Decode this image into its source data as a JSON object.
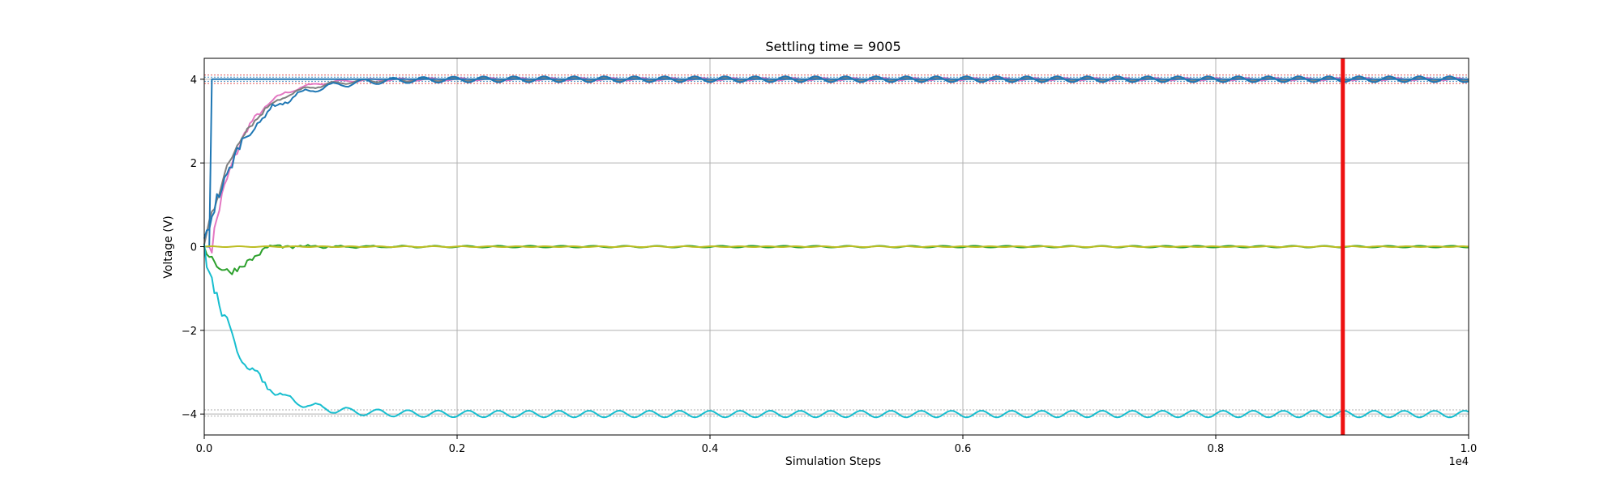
{
  "chart_data": {
    "type": "line",
    "title": "Settling time = 9005",
    "xlabel": "Simulation Steps",
    "ylabel": "Voltage (V)",
    "x_multiplier_label": "1e4",
    "xlim": [
      0,
      10000
    ],
    "ylim": [
      -4.5,
      4.5
    ],
    "xticks": [
      0,
      2000,
      4000,
      6000,
      8000,
      10000
    ],
    "xtick_labels": [
      "0.0",
      "0.2",
      "0.4",
      "0.6",
      "0.8",
      "1.0"
    ],
    "yticks": [
      -4,
      -2,
      0,
      2,
      4
    ],
    "ytick_labels": [
      "−4",
      "−2",
      "0",
      "2",
      "4"
    ],
    "grid": true,
    "settling_time": 9005,
    "marker_color": "#ee1111",
    "tolerance_bands": [
      {
        "y": 4.1,
        "color": "#d62728"
      },
      {
        "y": 3.9,
        "color": "#d62728"
      },
      {
        "y": 4.05,
        "color": "#1f77b4"
      },
      {
        "y": 3.95,
        "color": "#1f77b4"
      },
      {
        "y": -3.9,
        "color": "#999999"
      },
      {
        "y": -4.05,
        "color": "#999999"
      }
    ],
    "series": [
      {
        "color": "#e377c2",
        "final": 4.0,
        "kind": "rise",
        "delay": 60,
        "settle": 750,
        "osc": 0.03
      },
      {
        "color": "#7f7f7f",
        "final": 4.0,
        "kind": "rise",
        "delay": 0,
        "settle": 900,
        "osc": 0.04
      },
      {
        "color": "#1f77b4",
        "final": 4.0,
        "kind": "step",
        "delay": 50,
        "settle": 0,
        "osc": 0.0
      },
      {
        "color": "#1f77b4",
        "final": 4.0,
        "kind": "rise",
        "delay": 0,
        "settle": 1000,
        "osc": 0.07
      },
      {
        "color": "#2ca02c",
        "final": 0.0,
        "kind": "dip",
        "delay": 0,
        "settle": 1100,
        "osc": 0.02
      },
      {
        "color": "#bcbd22",
        "final": 0.0,
        "kind": "flat",
        "delay": 0,
        "settle": 0,
        "osc": 0.01
      },
      {
        "color": "#17becf",
        "final": -4.0,
        "kind": "rise",
        "delay": 0,
        "settle": 900,
        "osc": 0.08
      }
    ]
  }
}
